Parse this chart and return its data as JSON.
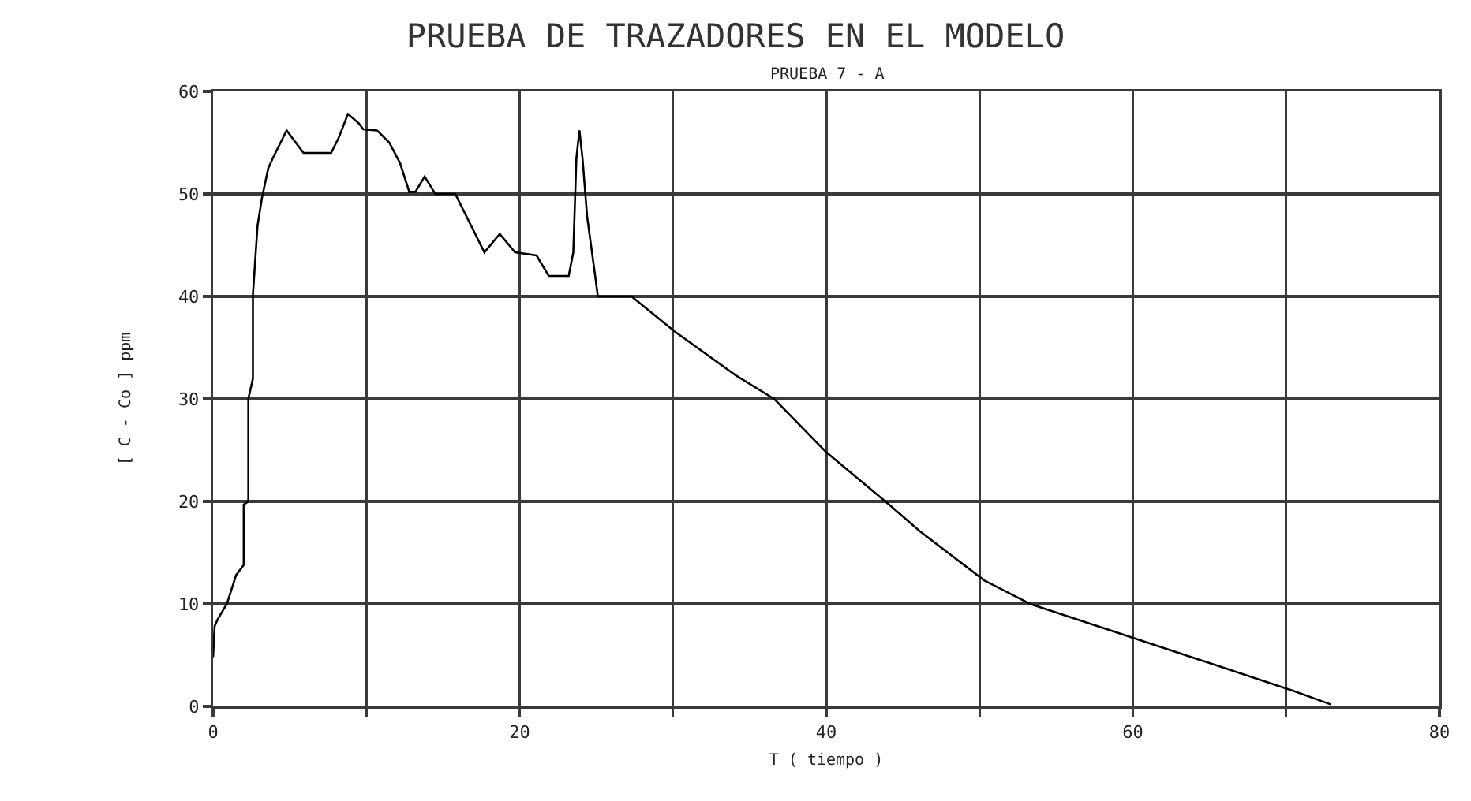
{
  "chart_data": {
    "type": "line",
    "title": "PRUEBA DE TRAZADORES EN EL MODELO",
    "subtitle": "PRUEBA 7 - A",
    "xlabel": "T ( tiempo )",
    "ylabel": "[ C - Co ] ppm",
    "x": [
      0,
      0.1,
      0.3,
      0.9,
      1.5,
      2.0,
      2.0,
      2.3,
      2.3,
      2.6,
      2.6,
      2.9,
      3.2,
      3.6,
      3.9,
      4.8,
      5.9,
      7.7,
      8.2,
      8.8,
      9.5,
      9.8,
      10.7,
      11.5,
      12.2,
      12.8,
      13.2,
      13.8,
      14.5,
      15.8,
      16.3,
      17.7,
      18.7,
      19.7,
      21.1,
      21.9,
      23.2,
      23.5,
      23.7,
      23.9,
      24.1,
      24.4,
      24.9,
      25.1,
      27.3,
      30.1,
      34.1,
      36.6,
      40,
      44.1,
      46.1,
      50.3,
      53.3,
      60.2,
      70.5,
      72.9
    ],
    "series": [
      {
        "color": "#000000",
        "values": [
          4.8,
          7.8,
          8.5,
          10,
          12.8,
          13.8,
          19.7,
          20,
          30,
          32,
          40.2,
          46.9,
          49.7,
          52.5,
          53.5,
          56.2,
          54,
          54,
          55.5,
          57.8,
          56.9,
          56.3,
          56.2,
          55,
          53,
          50.2,
          50.2,
          51.7,
          50,
          50,
          48.5,
          44.3,
          46.1,
          44.3,
          44,
          42,
          42,
          44.3,
          53.5,
          56.2,
          53.5,
          47.8,
          42.3,
          40,
          40,
          36.6,
          32.3,
          30,
          24.8,
          19.7,
          17.1,
          12.3,
          10,
          6.6,
          1.5,
          0.2
        ]
      }
    ],
    "xlim": [
      0,
      80
    ],
    "ylim": [
      0,
      60
    ],
    "xticks": [
      0,
      {
        "value": 10,
        "label": null
      },
      20,
      {
        "value": 30,
        "label": null
      },
      40,
      {
        "value": 50,
        "label": null
      },
      60,
      {
        "value": 70,
        "label": null
      },
      80
    ],
    "yticks": [
      0,
      10,
      20,
      30,
      40,
      50,
      60
    ],
    "grid": true,
    "line_style": "solid"
  }
}
